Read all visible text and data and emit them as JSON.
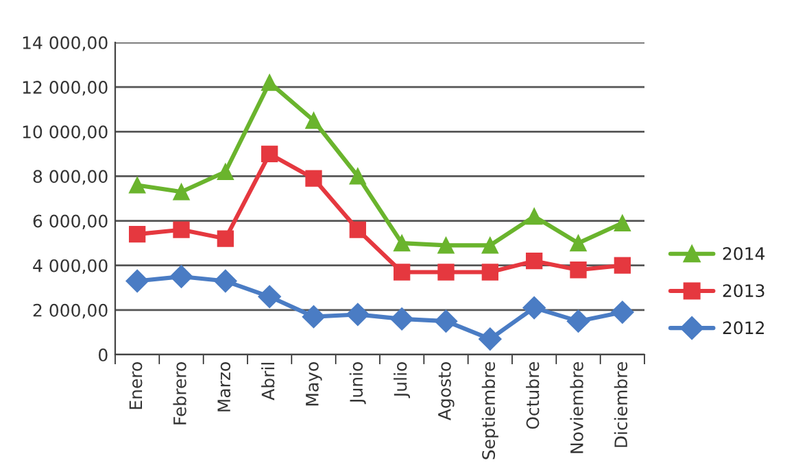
{
  "chart_data": {
    "type": "line",
    "categories": [
      "Enero",
      "Febrero",
      "Marzo",
      "Abril",
      "Mayo",
      "Junio",
      "Julio",
      "Agosto",
      "Septiembre",
      "Octubre",
      "Noviembre",
      "Diciembre"
    ],
    "series": [
      {
        "name": "2014",
        "color": "#6ab42d",
        "marker": "triangle",
        "values": [
          7600,
          7300,
          8200,
          12200,
          10500,
          8000,
          5000,
          4900,
          4900,
          6200,
          5000,
          5900
        ]
      },
      {
        "name": "2013",
        "color": "#e5383f",
        "marker": "square",
        "values": [
          5400,
          5600,
          5200,
          9000,
          7900,
          5600,
          3700,
          3700,
          3700,
          4200,
          3800,
          4000
        ]
      },
      {
        "name": "2012",
        "color": "#4a7cc4",
        "marker": "diamond",
        "values": [
          3300,
          3500,
          3300,
          2600,
          1700,
          1800,
          1600,
          1500,
          700,
          2100,
          1500,
          1900
        ]
      }
    ],
    "ylim": [
      0,
      14000
    ],
    "yticks": [
      0,
      {
        "value": 2000,
        "label": "2 000,00"
      },
      {
        "value": 4000,
        "label": "4 000,00"
      },
      {
        "value": 6000,
        "label": "6 000,00"
      },
      {
        "value": 8000,
        "label": "8 000,00"
      },
      {
        "value": 10000,
        "label": "10 000,00"
      },
      {
        "value": 12000,
        "label": "12 000,00"
      },
      {
        "value": 14000,
        "label": "14 000,00"
      }
    ],
    "grid": "y",
    "legend": "right",
    "line_style": "solid"
  }
}
